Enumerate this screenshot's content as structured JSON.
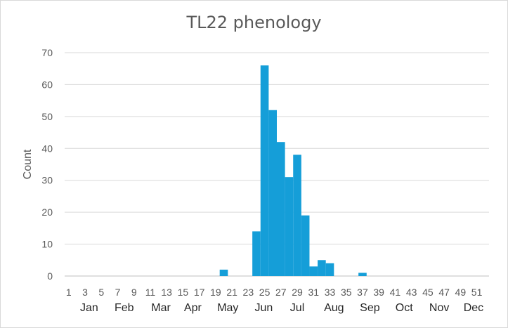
{
  "chart_data": {
    "type": "bar",
    "title": "TL22 phenology",
    "xlabel": "",
    "ylabel": "Count",
    "ylim": [
      0,
      70
    ],
    "yticks": [
      0,
      10,
      20,
      30,
      40,
      50,
      60,
      70
    ],
    "grid": true,
    "legend": "none",
    "bar_color": "#159ED8",
    "x_range": [
      1,
      52
    ],
    "x_tick_labels": [
      "1",
      "3",
      "5",
      "7",
      "9",
      "11",
      "13",
      "15",
      "17",
      "19",
      "21",
      "23",
      "25",
      "27",
      "29",
      "31",
      "33",
      "35",
      "37",
      "39",
      "41",
      "43",
      "45",
      "47",
      "49",
      "51"
    ],
    "month_labels": [
      {
        "label": "Jan",
        "week": 3.5
      },
      {
        "label": "Feb",
        "week": 7.8
      },
      {
        "label": "Mar",
        "week": 12.3
      },
      {
        "label": "Apr",
        "week": 16.2
      },
      {
        "label": "May",
        "week": 20.5
      },
      {
        "label": "Jun",
        "week": 24.9
      },
      {
        "label": "Jul",
        "week": 29.0
      },
      {
        "label": "Aug",
        "week": 33.5
      },
      {
        "label": "Sep",
        "week": 37.9
      },
      {
        "label": "Oct",
        "week": 42.1
      },
      {
        "label": "Nov",
        "week": 46.4
      },
      {
        "label": "Dec",
        "week": 50.6
      }
    ],
    "weeks": [
      20,
      24,
      25,
      26,
      27,
      28,
      29,
      30,
      31,
      32,
      33,
      37
    ],
    "values": [
      2,
      14,
      66,
      52,
      42,
      31,
      38,
      19,
      3,
      5,
      4,
      1
    ]
  }
}
